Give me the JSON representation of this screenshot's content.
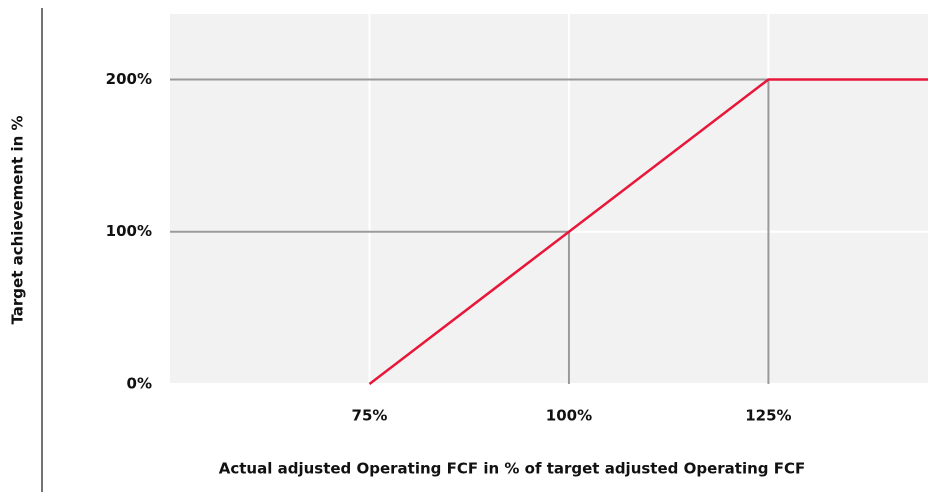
{
  "chart_data": {
    "type": "line",
    "xlabel": "Actual adjusted Operating FCF in % of target adjusted Operating FCF",
    "ylabel": "Target achievement in %",
    "x": [
      75,
      100,
      125,
      145
    ],
    "series": [
      {
        "color": "#e8173a",
        "values": [
          0,
          100,
          200,
          200
        ]
      }
    ],
    "xlim": [
      50,
      145
    ],
    "ylim": [
      0,
      243
    ],
    "xticks": [
      {
        "value": 75,
        "label": "75%"
      },
      {
        "value": 100,
        "label": "100%"
      },
      {
        "value": 125,
        "label": "125%"
      }
    ],
    "yticks": [
      {
        "value": 0,
        "label": "0%"
      },
      {
        "value": 100,
        "label": "100%"
      },
      {
        "value": 200,
        "label": "200%"
      }
    ],
    "grid": true
  }
}
